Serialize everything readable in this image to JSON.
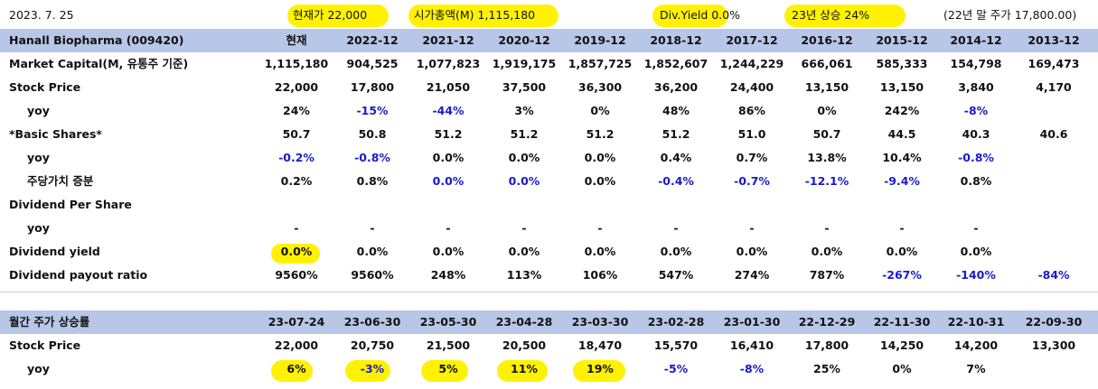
{
  "top_bar": {
    "date": "2023. 7. 25",
    "price_label": "현재가 22,000",
    "mcap_label": "시가총액(M) 1,115,180",
    "div_yield_label": "Div.Yield 0.0%",
    "ytd_label": "23년 상승 24%",
    "prev_year_label": "(22년 말 주가 17,800.00)"
  },
  "highlight_color": "#fff200",
  "header_color": "#b8c7e8",
  "negative_color": "#1a1acc",
  "annual": {
    "title": "Hanall Biopharma (009420)",
    "columns": [
      "현재",
      "2022-12",
      "2021-12",
      "2020-12",
      "2019-12",
      "2018-12",
      "2017-12",
      "2016-12",
      "2015-12",
      "2014-12",
      "2013-12"
    ],
    "rows": [
      {
        "label": "Market Capital(M, 유통주 기준)",
        "indent": false,
        "values": [
          "1,115,180",
          "904,525",
          "1,077,823",
          "1,919,175",
          "1,857,725",
          "1,852,607",
          "1,244,229",
          "666,061",
          "585,333",
          "154,798",
          "169,473"
        ]
      },
      {
        "label": "Stock Price",
        "indent": false,
        "values": [
          "22,000",
          "17,800",
          "21,050",
          "37,500",
          "36,300",
          "36,200",
          "24,400",
          "13,150",
          "13,150",
          "3,840",
          "4,170"
        ]
      },
      {
        "label": "yoy",
        "indent": true,
        "values": [
          "24%",
          "-15%",
          "-44%",
          "3%",
          "0%",
          "48%",
          "86%",
          "0%",
          "242%",
          "-8%",
          ""
        ]
      },
      {
        "label": "*Basic Shares*",
        "indent": false,
        "values": [
          "50.7",
          "50.8",
          "51.2",
          "51.2",
          "51.2",
          "51.2",
          "51.0",
          "50.7",
          "44.5",
          "40.3",
          "40.6"
        ]
      },
      {
        "label": "yoy",
        "indent": true,
        "values": [
          "-0.2%",
          "-0.8%",
          "0.0%",
          "0.0%",
          "0.0%",
          "0.4%",
          "0.7%",
          "13.8%",
          "10.4%",
          "-0.8%",
          ""
        ]
      },
      {
        "label": "주당가치 증분",
        "indent": true,
        "values": [
          "0.2%",
          "0.8%",
          "0.0%",
          "0.0%",
          "0.0%",
          "-0.4%",
          "-0.7%",
          "-12.1%",
          "-9.4%",
          "0.8%",
          ""
        ]
      },
      {
        "label": "Dividend Per Share",
        "indent": false,
        "values": [
          "",
          "",
          "",
          "",
          "",
          "",
          "",
          "",
          "",
          "",
          ""
        ]
      },
      {
        "label": "yoy",
        "indent": true,
        "values": [
          "-",
          "-",
          "-",
          "-",
          "-",
          "-",
          "-",
          "-",
          "-",
          "-",
          ""
        ]
      },
      {
        "label": "Dividend yield",
        "indent": false,
        "values": [
          "0.0%",
          "0.0%",
          "0.0%",
          "0.0%",
          "0.0%",
          "0.0%",
          "0.0%",
          "0.0%",
          "0.0%",
          "0.0%",
          ""
        ]
      },
      {
        "label": "Dividend payout ratio",
        "indent": false,
        "values": [
          "9560%",
          "9560%",
          "248%",
          "113%",
          "106%",
          "547%",
          "274%",
          "787%",
          "-267%",
          "-140%",
          "-84%"
        ]
      }
    ]
  },
  "monthly": {
    "title": "월간 주가 상승률",
    "columns": [
      "23-07-24",
      "23-06-30",
      "23-05-30",
      "23-04-28",
      "23-03-30",
      "23-02-28",
      "23-01-30",
      "22-12-29",
      "22-11-30",
      "22-10-31",
      "22-09-30"
    ],
    "rows": [
      {
        "label": "Stock Price",
        "indent": false,
        "values": [
          "22,000",
          "20,750",
          "21,500",
          "20,500",
          "18,470",
          "15,570",
          "16,410",
          "17,800",
          "14,250",
          "14,200",
          "13,300"
        ]
      },
      {
        "label": "yoy",
        "indent": true,
        "values": [
          "6%",
          "-3%",
          "5%",
          "11%",
          "19%",
          "-5%",
          "-8%",
          "25%",
          "0%",
          "7%",
          ""
        ]
      }
    ]
  }
}
